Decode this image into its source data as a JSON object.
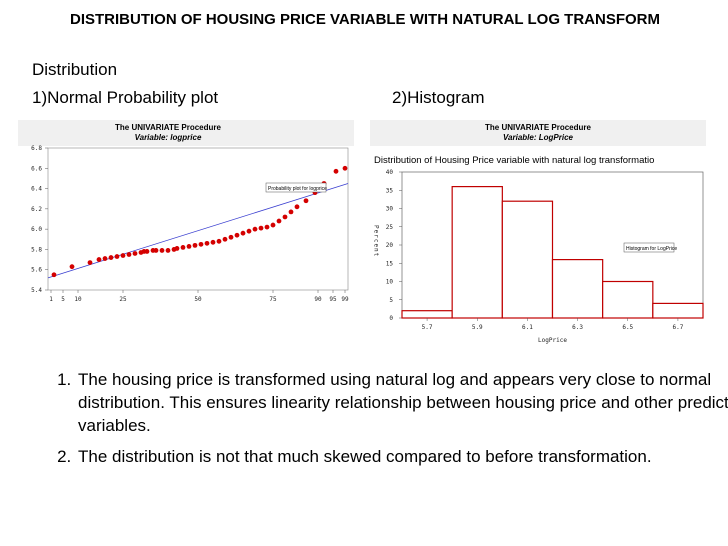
{
  "slide": {
    "title": "DISTRIBUTION OF HOUSING PRICE VARIABLE WITH NATURAL LOG TRANSFORM",
    "section_label": "Distribution",
    "sub1": "1)Normal Probability plot",
    "sub2": "2)Histogram",
    "bullets": [
      "The housing price is transformed using natural log and appears very close to normal distribution. This ensures linearity relationship between housing price and other predictor variables.",
      "The distribution is not that much skewed compared to before transformation."
    ]
  },
  "probability_panel": {
    "procedure": "The UNIVARIATE Procedure",
    "variable": "Variable: logprice",
    "legend": "Probability plot for logprice"
  },
  "histogram_panel": {
    "procedure": "The UNIVARIATE Procedure",
    "variable": "Variable: LogPrice",
    "header": "Distribution of Housing Price variable with natural log transformatio",
    "legend": "Histogram for LogPrice",
    "ylabel": "Percent",
    "xlabel": "LogPrice"
  },
  "chart_data": [
    {
      "type": "scatter",
      "x_ticks": [
        "1",
        "5",
        "10",
        "25",
        "50",
        "75",
        "90",
        "95",
        "99"
      ],
      "y_ticks": [
        "5.4",
        "5.6",
        "5.8",
        "6.0",
        "6.2",
        "6.4",
        "6.6",
        "6.8"
      ],
      "ylim": [
        5.4,
        6.8
      ],
      "xlim": [
        0,
        100
      ],
      "points": [
        {
          "x": 2,
          "y": 5.55
        },
        {
          "x": 8,
          "y": 5.63
        },
        {
          "x": 14,
          "y": 5.67
        },
        {
          "x": 17,
          "y": 5.7
        },
        {
          "x": 19,
          "y": 5.71
        },
        {
          "x": 21,
          "y": 5.72
        },
        {
          "x": 23,
          "y": 5.73
        },
        {
          "x": 25,
          "y": 5.74
        },
        {
          "x": 27,
          "y": 5.75
        },
        {
          "x": 29,
          "y": 5.76
        },
        {
          "x": 31,
          "y": 5.77
        },
        {
          "x": 32,
          "y": 5.78
        },
        {
          "x": 33,
          "y": 5.78
        },
        {
          "x": 35,
          "y": 5.79
        },
        {
          "x": 36,
          "y": 5.79
        },
        {
          "x": 38,
          "y": 5.79
        },
        {
          "x": 40,
          "y": 5.79
        },
        {
          "x": 42,
          "y": 5.8
        },
        {
          "x": 43,
          "y": 5.81
        },
        {
          "x": 45,
          "y": 5.82
        },
        {
          "x": 47,
          "y": 5.83
        },
        {
          "x": 49,
          "y": 5.84
        },
        {
          "x": 51,
          "y": 5.85
        },
        {
          "x": 53,
          "y": 5.86
        },
        {
          "x": 55,
          "y": 5.87
        },
        {
          "x": 57,
          "y": 5.88
        },
        {
          "x": 59,
          "y": 5.9
        },
        {
          "x": 61,
          "y": 5.92
        },
        {
          "x": 63,
          "y": 5.94
        },
        {
          "x": 65,
          "y": 5.96
        },
        {
          "x": 67,
          "y": 5.98
        },
        {
          "x": 69,
          "y": 6.0
        },
        {
          "x": 71,
          "y": 6.01
        },
        {
          "x": 73,
          "y": 6.02
        },
        {
          "x": 75,
          "y": 6.04
        },
        {
          "x": 77,
          "y": 6.08
        },
        {
          "x": 79,
          "y": 6.12
        },
        {
          "x": 81,
          "y": 6.17
        },
        {
          "x": 83,
          "y": 6.22
        },
        {
          "x": 86,
          "y": 6.28
        },
        {
          "x": 89,
          "y": 6.36
        },
        {
          "x": 92,
          "y": 6.45
        },
        {
          "x": 96,
          "y": 6.57
        },
        {
          "x": 99,
          "y": 6.6
        }
      ],
      "reference_line": {
        "x": [
          0,
          100
        ],
        "y": [
          5.52,
          6.45
        ]
      },
      "marker_color": "#d40000",
      "line_color": "#3a3fd0"
    },
    {
      "type": "bar",
      "categories": [
        "5.7",
        "5.9",
        "6.1",
        "6.3",
        "6.5",
        "6.7"
      ],
      "bins": [
        5.6,
        5.8,
        6.0,
        6.2,
        6.4,
        6.6,
        6.8
      ],
      "values": [
        2,
        36,
        32,
        16,
        10,
        4
      ],
      "y_ticks": [
        "0",
        "5",
        "10",
        "15",
        "20",
        "25",
        "30",
        "35",
        "40"
      ],
      "ylim": [
        0,
        40
      ],
      "ylabel": "Percent",
      "xlabel": "LogPrice",
      "bar_edge_color": "#c00000"
    }
  ]
}
